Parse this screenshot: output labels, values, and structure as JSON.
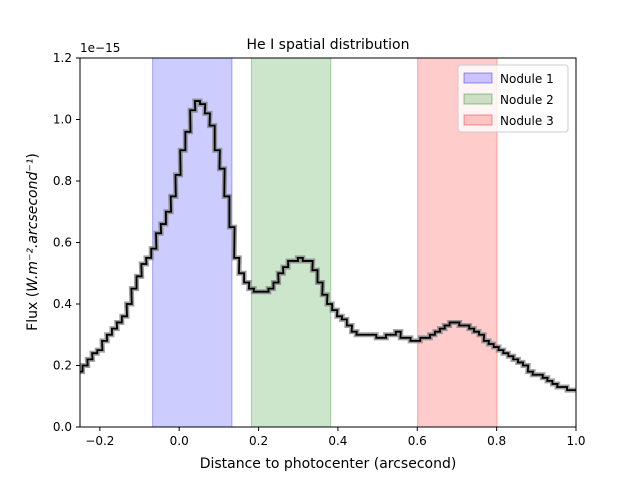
{
  "chart_data": {
    "type": "line",
    "title": "He I spatial distribution",
    "xlabel": "Distance to photocenter (arcsecond)",
    "ylabel_prefix": "Flux (",
    "ylabel_unit": "W.m⁻².arcsecond⁻¹",
    "ylabel_suffix": ")",
    "y_offset_label": "1e−15",
    "xlim": [
      -0.25,
      1.0
    ],
    "ylim": [
      0.0,
      1.2
    ],
    "x_ticks": [
      -0.2,
      0.0,
      0.2,
      0.4,
      0.6,
      0.8,
      1.0
    ],
    "x_tick_labels": [
      "−0.2",
      "0.0",
      "0.2",
      "0.4",
      "0.6",
      "0.8",
      "1.0"
    ],
    "y_ticks": [
      0.0,
      0.2,
      0.4,
      0.6,
      0.8,
      1.0,
      1.2
    ],
    "y_tick_labels": [
      "0.0",
      "0.2",
      "0.4",
      "0.6",
      "0.8",
      "1.0",
      "1.2"
    ],
    "grid": false,
    "legend_position": "top-right",
    "regions": [
      {
        "name": "Nodule 1",
        "x_range": [
          -0.067,
          0.133
        ],
        "color": "#0000ff",
        "alpha": 0.2
      },
      {
        "name": "Nodule 2",
        "x_range": [
          0.182,
          0.382
        ],
        "color": "#008000",
        "alpha": 0.2
      },
      {
        "name": "Nodule 3",
        "x_range": [
          0.601,
          0.801
        ],
        "color": "#ff0000",
        "alpha": 0.2
      }
    ],
    "series": [
      {
        "style": "step",
        "color": "#000000",
        "uncertainty_band_color": "#808080",
        "points": [
          [
            -0.25,
            0.18
          ],
          [
            -0.237,
            0.2
          ],
          [
            -0.225,
            0.22
          ],
          [
            -0.213,
            0.24
          ],
          [
            -0.2,
            0.25
          ],
          [
            -0.188,
            0.28
          ],
          [
            -0.176,
            0.3
          ],
          [
            -0.163,
            0.32
          ],
          [
            -0.151,
            0.34
          ],
          [
            -0.138,
            0.36
          ],
          [
            -0.126,
            0.4
          ],
          [
            -0.114,
            0.45
          ],
          [
            -0.101,
            0.49
          ],
          [
            -0.089,
            0.53
          ],
          [
            -0.077,
            0.55
          ],
          [
            -0.064,
            0.58
          ],
          [
            -0.052,
            0.63
          ],
          [
            -0.04,
            0.66
          ],
          [
            -0.027,
            0.7
          ],
          [
            -0.015,
            0.75
          ],
          [
            -0.003,
            0.82
          ],
          [
            0.009,
            0.9
          ],
          [
            0.022,
            0.96
          ],
          [
            0.034,
            1.03
          ],
          [
            0.046,
            1.06
          ],
          [
            0.059,
            1.05
          ],
          [
            0.071,
            1.02
          ],
          [
            0.083,
            0.98
          ],
          [
            0.096,
            0.9
          ],
          [
            0.108,
            0.84
          ],
          [
            0.12,
            0.75
          ],
          [
            0.133,
            0.65
          ],
          [
            0.145,
            0.55
          ],
          [
            0.157,
            0.5
          ],
          [
            0.17,
            0.47
          ],
          [
            0.182,
            0.45
          ],
          [
            0.194,
            0.44
          ],
          [
            0.207,
            0.44
          ],
          [
            0.219,
            0.44
          ],
          [
            0.231,
            0.45
          ],
          [
            0.244,
            0.47
          ],
          [
            0.256,
            0.5
          ],
          [
            0.268,
            0.52
          ],
          [
            0.281,
            0.54
          ],
          [
            0.293,
            0.54
          ],
          [
            0.305,
            0.55
          ],
          [
            0.318,
            0.54
          ],
          [
            0.33,
            0.54
          ],
          [
            0.342,
            0.51
          ],
          [
            0.355,
            0.47
          ],
          [
            0.367,
            0.43
          ],
          [
            0.379,
            0.4
          ],
          [
            0.392,
            0.38
          ],
          [
            0.404,
            0.36
          ],
          [
            0.416,
            0.35
          ],
          [
            0.429,
            0.33
          ],
          [
            0.441,
            0.31
          ],
          [
            0.453,
            0.3
          ],
          [
            0.466,
            0.3
          ],
          [
            0.478,
            0.3
          ],
          [
            0.49,
            0.3
          ],
          [
            0.503,
            0.29
          ],
          [
            0.515,
            0.29
          ],
          [
            0.527,
            0.3
          ],
          [
            0.54,
            0.3
          ],
          [
            0.552,
            0.31
          ],
          [
            0.564,
            0.29
          ],
          [
            0.577,
            0.29
          ],
          [
            0.589,
            0.28
          ],
          [
            0.601,
            0.28
          ],
          [
            0.614,
            0.29
          ],
          [
            0.626,
            0.29
          ],
          [
            0.638,
            0.3
          ],
          [
            0.651,
            0.31
          ],
          [
            0.663,
            0.32
          ],
          [
            0.675,
            0.33
          ],
          [
            0.688,
            0.34
          ],
          [
            0.7,
            0.34
          ],
          [
            0.712,
            0.33
          ],
          [
            0.725,
            0.33
          ],
          [
            0.737,
            0.32
          ],
          [
            0.749,
            0.31
          ],
          [
            0.762,
            0.3
          ],
          [
            0.774,
            0.28
          ],
          [
            0.786,
            0.27
          ],
          [
            0.799,
            0.26
          ],
          [
            0.811,
            0.25
          ],
          [
            0.823,
            0.24
          ],
          [
            0.836,
            0.23
          ],
          [
            0.848,
            0.22
          ],
          [
            0.86,
            0.21
          ],
          [
            0.873,
            0.2
          ],
          [
            0.885,
            0.18
          ],
          [
            0.897,
            0.17
          ],
          [
            0.91,
            0.17
          ],
          [
            0.922,
            0.16
          ],
          [
            0.934,
            0.15
          ],
          [
            0.947,
            0.14
          ],
          [
            0.959,
            0.13
          ],
          [
            0.971,
            0.13
          ],
          [
            0.984,
            0.12
          ],
          [
            0.996,
            0.12
          ]
        ]
      }
    ]
  }
}
